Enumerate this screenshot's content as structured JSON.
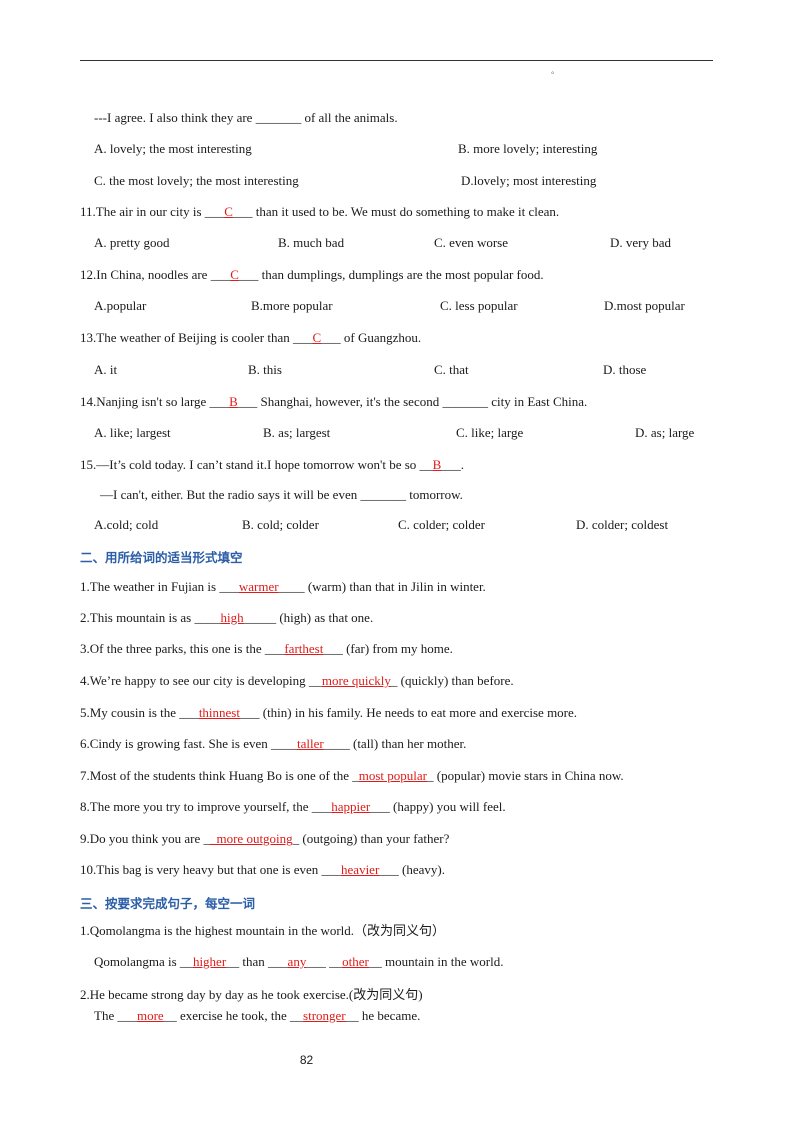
{
  "q10_tail": {
    "text": "---I agree. I also think they are _______ of all the animals."
  },
  "q10_opts": {
    "a": "A. lovely; the most interesting",
    "b": "B. more lovely; interesting",
    "c": "C. the most lovely; the most interesting",
    "d": "D.lovely; most interesting"
  },
  "q11": {
    "pre": "11.The air in our city is ___",
    "ans": "C",
    "post": "___ than it used to be. We must do something to make it clean.",
    "a": "A. pretty good",
    "b": "B. much bad",
    "c": "C. even worse",
    "d": "D. very bad"
  },
  "q12": {
    "pre": "12.In China, noodles are ___",
    "ans": "C",
    "post": "___ than dumplings, dumplings are the most popular food.",
    "a": "A.popular",
    "b": "B.more popular",
    "c": "C. less popular",
    "d": "D.most popular"
  },
  "q13": {
    "pre": "13.The weather of Beijing is cooler than ___",
    "ans": "C",
    "post": "___ of Guangzhou.",
    "a": "A. it",
    "b": "B. this",
    "c": "C. that",
    "d": "D. those"
  },
  "q14": {
    "pre": "14.Nanjing isn't so large ___",
    "ans": "B",
    "post": "___ Shanghai, however, it's the second _______ city in East China.",
    "a": "A. like; largest",
    "b": "B. as; largest",
    "c": "C. like; large",
    "d": "D. as; large"
  },
  "q15": {
    "pre": "15.—It’s cold today. I can’t stand it.I hope tomorrow won't be so __",
    "ans": "B",
    "post": "___.",
    "line2": "—I can't, either. But the radio says it will be even _______ tomorrow.",
    "a": "A.cold; cold",
    "b": "B. cold; colder",
    "c": "C. colder; colder",
    "d": "D. colder; coldest"
  },
  "section2": {
    "heading": "二、用所给词的适当形式填空"
  },
  "s2": [
    {
      "pre": "1.The weather in Fujian is ___",
      "ans": "warmer",
      "post": "____ (warm) than that in Jilin in winter."
    },
    {
      "pre": "2.This mountain is as ____",
      "ans": "high",
      "post": "_____ (high) as that one."
    },
    {
      "pre": "3.Of the three parks, this one is the ___",
      "ans": "farthest",
      "post": "___ (far) from my home."
    },
    {
      "pre": "4.We’re happy to see our city is developing __",
      "ans": "more quickly",
      "post": "_ (quickly) than before."
    },
    {
      "pre": "5.My cousin is the ___",
      "ans": "thinnest",
      "post": "___ (thin) in his family. He needs to eat more and exercise more."
    },
    {
      "pre": "6.Cindy is growing fast. She is even ____",
      "ans": "taller",
      "post": "____ (tall) than her mother."
    },
    {
      "pre": "7.Most of the students think Huang Bo is one of the _",
      "ans": "most popular",
      "post": "_ (popular) movie stars in China now."
    },
    {
      "pre": "8.The more you try to improve yourself, the ___",
      "ans": "happier",
      "post": "___ (happy) you will feel."
    },
    {
      "pre": "9.Do you think you are _",
      "ans": "_more outgoing",
      "post": "_ (outgoing) than your father?"
    },
    {
      "pre": "10.This bag is very heavy but that one is even ___",
      "ans": "heavier",
      "post": "___ (heavy)."
    }
  ],
  "section3": {
    "heading": "三、按要求完成句子，每空一词"
  },
  "s3q1": {
    "prompt": "1.Qomolangma is the highest mountain in the world.（改为同义句）",
    "p1": "Qomolangma is __",
    "a1": "higher",
    "p2": "__ than ___",
    "a2": "any",
    "p3": "___ __",
    "a3": "other",
    "p4": "__ mountain in the world."
  },
  "s3q2": {
    "prompt": "2.He became strong day by day as he took exercise.(改为同义句)",
    "p1": "The ___",
    "a1": "more",
    "p2": "__ exercise he took, the __",
    "a2": "stronger",
    "p3": "__ he became."
  },
  "page": {
    "number": "82",
    "mark": "°"
  }
}
